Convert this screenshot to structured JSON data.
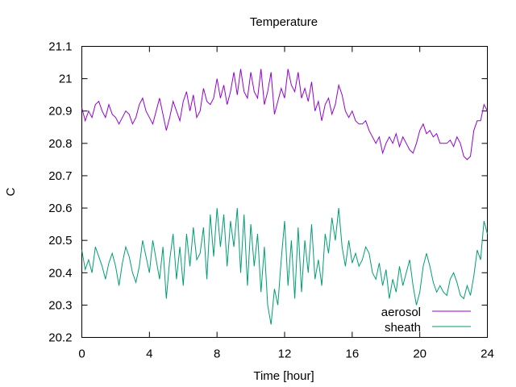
{
  "chart_data": {
    "type": "line",
    "title": "Temperature",
    "xlabel": "Time [hour]",
    "ylabel": "C",
    "xlim": [
      0,
      24
    ],
    "ylim": [
      20.2,
      21.1
    ],
    "xticks": [
      0,
      4,
      8,
      12,
      16,
      20,
      24
    ],
    "xtick_labels": [
      "0",
      "4",
      "8",
      "12",
      "16",
      "20",
      "24"
    ],
    "yticks": [
      20.2,
      20.3,
      20.4,
      20.5,
      20.6,
      20.7,
      20.8,
      20.9,
      21.0,
      21.1
    ],
    "ytick_labels": [
      "20.2",
      "20.3",
      "20.4",
      "20.5",
      "20.6",
      "20.7",
      "20.8",
      "20.9",
      "21",
      "21.1"
    ],
    "grid": false,
    "legend_position": "bottom-right",
    "series": [
      {
        "name": "aerosol",
        "color": "#9400d3",
        "x": [
          0.0,
          0.2,
          0.4,
          0.6,
          0.8,
          1.0,
          1.2,
          1.4,
          1.6,
          1.8,
          2.0,
          2.2,
          2.4,
          2.6,
          2.8,
          3.0,
          3.2,
          3.4,
          3.6,
          3.8,
          4.0,
          4.2,
          4.4,
          4.6,
          4.8,
          5.0,
          5.2,
          5.4,
          5.6,
          5.8,
          6.0,
          6.2,
          6.4,
          6.6,
          6.8,
          7.0,
          7.2,
          7.4,
          7.6,
          7.8,
          8.0,
          8.2,
          8.4,
          8.6,
          8.8,
          9.0,
          9.2,
          9.4,
          9.6,
          9.8,
          10.0,
          10.2,
          10.4,
          10.6,
          10.8,
          11.0,
          11.2,
          11.4,
          11.6,
          11.8,
          12.0,
          12.2,
          12.4,
          12.6,
          12.8,
          13.0,
          13.2,
          13.4,
          13.6,
          13.8,
          14.0,
          14.2,
          14.4,
          14.6,
          14.8,
          15.0,
          15.2,
          15.4,
          15.6,
          15.8,
          16.0,
          16.2,
          16.4,
          16.6,
          16.8,
          17.0,
          17.2,
          17.4,
          17.6,
          17.8,
          18.0,
          18.2,
          18.4,
          18.6,
          18.8,
          19.0,
          19.2,
          19.4,
          19.6,
          19.8,
          20.0,
          20.2,
          20.4,
          20.6,
          20.8,
          21.0,
          21.2,
          21.4,
          21.6,
          21.8,
          22.0,
          22.2,
          22.4,
          22.6,
          22.8,
          23.0,
          23.2,
          23.4,
          23.6,
          23.8,
          24.0
        ],
        "values": [
          20.91,
          20.87,
          20.9,
          20.88,
          20.92,
          20.93,
          20.9,
          20.88,
          20.92,
          20.89,
          20.88,
          20.86,
          20.88,
          20.9,
          20.89,
          20.86,
          20.88,
          20.92,
          20.94,
          20.9,
          20.88,
          20.86,
          20.9,
          20.94,
          20.89,
          20.84,
          20.88,
          20.93,
          20.9,
          20.87,
          20.93,
          20.96,
          20.9,
          20.95,
          20.88,
          20.9,
          20.97,
          20.93,
          20.92,
          20.94,
          21.0,
          20.94,
          20.98,
          20.92,
          20.96,
          21.02,
          20.95,
          21.03,
          20.96,
          20.94,
          21.02,
          20.96,
          20.94,
          21.03,
          20.92,
          20.96,
          21.02,
          20.89,
          20.93,
          20.97,
          20.94,
          21.03,
          20.98,
          20.96,
          21.02,
          20.94,
          20.97,
          20.93,
          20.99,
          20.9,
          20.93,
          20.87,
          20.92,
          20.94,
          20.89,
          20.92,
          20.98,
          20.95,
          20.9,
          20.88,
          20.9,
          20.87,
          20.86,
          20.86,
          20.87,
          20.84,
          20.82,
          20.8,
          20.82,
          20.77,
          20.8,
          20.82,
          20.8,
          20.83,
          20.79,
          20.82,
          20.8,
          20.78,
          20.77,
          20.8,
          20.84,
          20.86,
          20.83,
          20.84,
          20.82,
          20.83,
          20.8,
          20.8,
          20.8,
          20.81,
          20.79,
          20.82,
          20.8,
          20.76,
          20.75,
          20.76,
          20.84,
          20.87,
          20.87,
          20.92,
          20.9
        ]
      },
      {
        "name": "sheath",
        "color": "#009e73",
        "x": [
          0.0,
          0.2,
          0.4,
          0.6,
          0.8,
          1.0,
          1.2,
          1.4,
          1.6,
          1.8,
          2.0,
          2.2,
          2.4,
          2.6,
          2.8,
          3.0,
          3.2,
          3.4,
          3.6,
          3.8,
          4.0,
          4.2,
          4.4,
          4.6,
          4.8,
          5.0,
          5.2,
          5.4,
          5.6,
          5.8,
          6.0,
          6.2,
          6.4,
          6.6,
          6.8,
          7.0,
          7.2,
          7.4,
          7.6,
          7.8,
          8.0,
          8.2,
          8.4,
          8.6,
          8.8,
          9.0,
          9.2,
          9.4,
          9.6,
          9.8,
          10.0,
          10.2,
          10.4,
          10.6,
          10.8,
          11.0,
          11.2,
          11.4,
          11.6,
          11.8,
          12.0,
          12.2,
          12.4,
          12.6,
          12.8,
          13.0,
          13.2,
          13.4,
          13.6,
          13.8,
          14.0,
          14.2,
          14.4,
          14.6,
          14.8,
          15.0,
          15.2,
          15.4,
          15.6,
          15.8,
          16.0,
          16.2,
          16.4,
          16.6,
          16.8,
          17.0,
          17.2,
          17.4,
          17.6,
          17.8,
          18.0,
          18.2,
          18.4,
          18.6,
          18.8,
          19.0,
          19.2,
          19.4,
          19.6,
          19.8,
          20.0,
          20.2,
          20.4,
          20.6,
          20.8,
          21.0,
          21.2,
          21.4,
          21.6,
          21.8,
          22.0,
          22.2,
          22.4,
          22.6,
          22.8,
          23.0,
          23.2,
          23.4,
          23.6,
          23.8,
          24.0
        ],
        "values": [
          20.47,
          20.41,
          20.44,
          20.4,
          20.48,
          20.45,
          20.42,
          20.38,
          20.43,
          20.46,
          20.42,
          20.36,
          20.43,
          20.48,
          20.45,
          20.4,
          20.37,
          20.42,
          20.5,
          20.45,
          20.4,
          20.5,
          20.44,
          20.38,
          20.48,
          20.32,
          20.44,
          20.52,
          20.38,
          20.48,
          20.36,
          20.52,
          20.42,
          20.54,
          20.44,
          20.46,
          20.54,
          20.38,
          20.58,
          20.45,
          20.6,
          20.48,
          20.58,
          20.42,
          20.56,
          20.48,
          20.6,
          20.4,
          20.58,
          20.36,
          20.55,
          20.42,
          20.52,
          20.34,
          20.48,
          20.3,
          20.24,
          20.35,
          20.3,
          20.44,
          20.56,
          20.36,
          20.5,
          20.32,
          20.54,
          20.34,
          20.5,
          20.4,
          20.55,
          20.38,
          20.44,
          20.36,
          20.52,
          20.46,
          20.57,
          20.5,
          20.6,
          20.48,
          20.42,
          20.5,
          20.43,
          20.46,
          20.42,
          20.44,
          20.48,
          20.46,
          20.4,
          20.38,
          20.43,
          20.36,
          20.41,
          20.32,
          20.38,
          20.34,
          20.42,
          20.36,
          20.4,
          20.44,
          20.36,
          20.3,
          20.34,
          20.42,
          20.46,
          20.42,
          20.37,
          20.34,
          20.36,
          20.34,
          20.33,
          20.38,
          20.4,
          20.37,
          20.33,
          20.32,
          20.36,
          20.33,
          20.39,
          20.47,
          20.44,
          20.56,
          20.52
        ]
      }
    ]
  }
}
